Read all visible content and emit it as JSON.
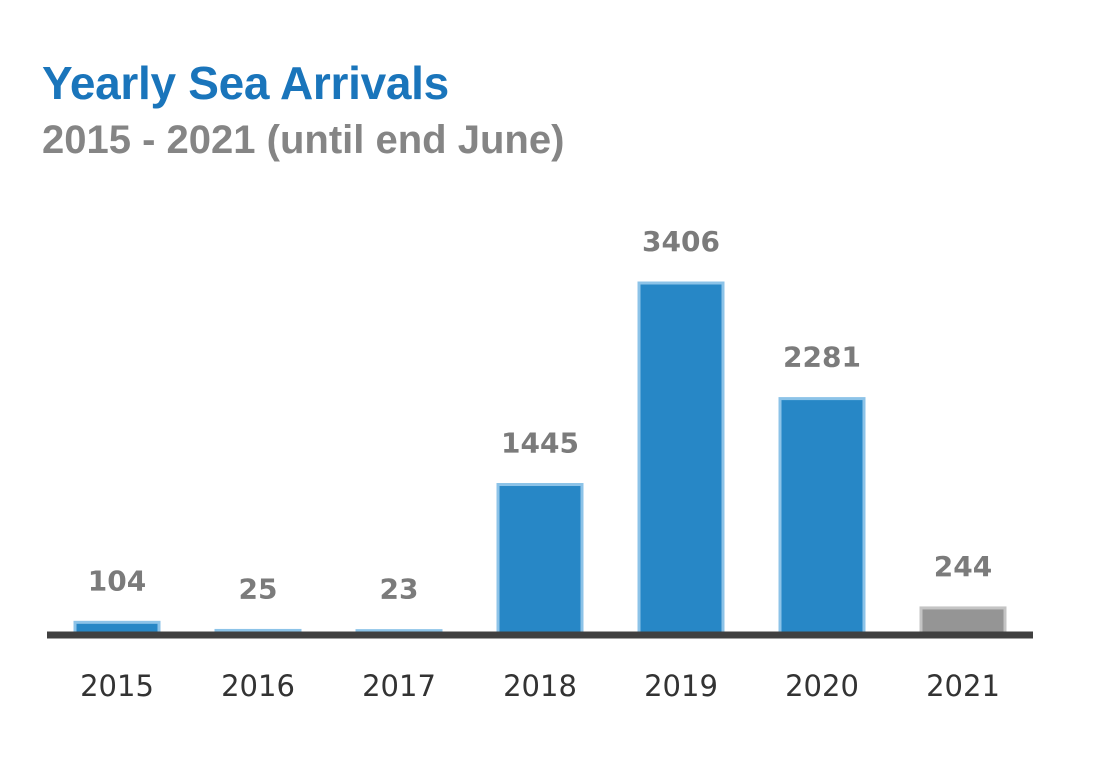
{
  "chart_data": {
    "type": "bar",
    "title": "Yearly Sea Arrivals",
    "subtitle": "2015 - 2021 (until end June)",
    "categories": [
      "2015",
      "2016",
      "2017",
      "2018",
      "2019",
      "2020",
      "2021"
    ],
    "values": [
      104,
      25,
      23,
      1445,
      3406,
      2281,
      244
    ],
    "data_labels": [
      "104",
      "25",
      "23",
      "1445",
      "3406",
      "2281",
      "244"
    ],
    "bar_colors": [
      "#2787c6",
      "#2787c6",
      "#2787c6",
      "#2787c6",
      "#2787c6",
      "#2787c6",
      "#959595"
    ],
    "bar_border_colors": [
      "#8cc3e8",
      "#8cc3e8",
      "#8cc3e8",
      "#8cc3e8",
      "#8cc3e8",
      "#8cc3e8",
      "#c4c4c4"
    ],
    "xlabel": "",
    "ylabel": "",
    "ylim": [
      0,
      3406
    ],
    "grid": false,
    "legend": "none",
    "axis_color": "#404040"
  }
}
